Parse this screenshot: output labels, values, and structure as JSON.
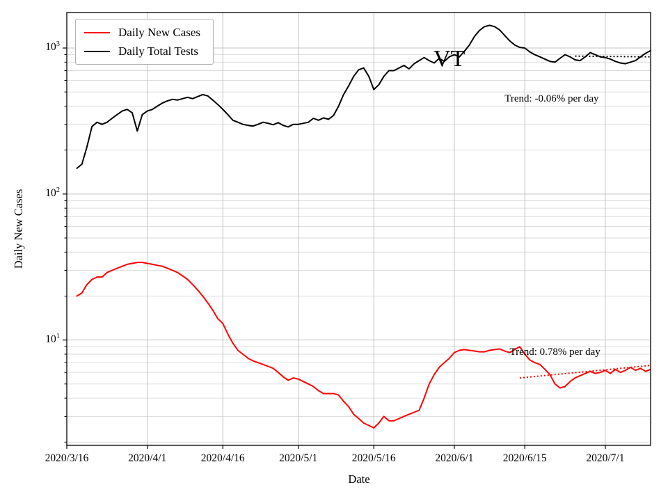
{
  "colors": {
    "accent_red": "#ff0000",
    "line_black": "#000000",
    "grid_major": "#c4c4c4",
    "grid_minor": "#d9d9d9",
    "axis": "#000000",
    "background": "#ffffff",
    "legend_border": "#b3b3b3"
  },
  "chart_data": {
    "type": "line",
    "title": "VT",
    "xlabel": "Date",
    "ylabel": "Daily New Cases",
    "y_scale": "log",
    "ylim": [
      1.9,
      1750
    ],
    "x_range": [
      "2020-03-16",
      "2020-07-10"
    ],
    "grid": true,
    "legend_position": "upper left",
    "y_ticks": [
      10,
      100,
      1000
    ],
    "y_minor_gridlines": [
      2,
      3,
      4,
      5,
      6,
      7,
      8,
      9,
      20,
      30,
      40,
      50,
      60,
      70,
      80,
      90,
      200,
      300,
      400,
      500,
      600,
      700,
      800,
      900
    ],
    "x_ticks": [
      {
        "date": "2020-03-16",
        "label": "2020/3/16"
      },
      {
        "date": "2020-04-01",
        "label": "2020/4/1"
      },
      {
        "date": "2020-04-16",
        "label": "2020/4/16"
      },
      {
        "date": "2020-05-01",
        "label": "2020/5/1"
      },
      {
        "date": "2020-05-16",
        "label": "2020/5/16"
      },
      {
        "date": "2020-06-01",
        "label": "2020/6/1"
      },
      {
        "date": "2020-06-15",
        "label": "2020/6/15"
      },
      {
        "date": "2020-07-01",
        "label": "2020/7/1"
      }
    ],
    "x": [
      "2020-03-18",
      "2020-03-19",
      "2020-03-20",
      "2020-03-21",
      "2020-03-22",
      "2020-03-23",
      "2020-03-24",
      "2020-03-25",
      "2020-03-26",
      "2020-03-27",
      "2020-03-28",
      "2020-03-29",
      "2020-03-30",
      "2020-03-31",
      "2020-04-01",
      "2020-04-02",
      "2020-04-03",
      "2020-04-04",
      "2020-04-05",
      "2020-04-06",
      "2020-04-07",
      "2020-04-08",
      "2020-04-09",
      "2020-04-10",
      "2020-04-11",
      "2020-04-12",
      "2020-04-13",
      "2020-04-14",
      "2020-04-15",
      "2020-04-16",
      "2020-04-17",
      "2020-04-18",
      "2020-04-19",
      "2020-04-20",
      "2020-04-21",
      "2020-04-22",
      "2020-04-23",
      "2020-04-24",
      "2020-04-25",
      "2020-04-26",
      "2020-04-27",
      "2020-04-28",
      "2020-04-29",
      "2020-04-30",
      "2020-05-01",
      "2020-05-02",
      "2020-05-03",
      "2020-05-04",
      "2020-05-05",
      "2020-05-06",
      "2020-05-07",
      "2020-05-08",
      "2020-05-09",
      "2020-05-10",
      "2020-05-11",
      "2020-05-12",
      "2020-05-13",
      "2020-05-14",
      "2020-05-15",
      "2020-05-16",
      "2020-05-17",
      "2020-05-18",
      "2020-05-19",
      "2020-05-20",
      "2020-05-21",
      "2020-05-22",
      "2020-05-23",
      "2020-05-24",
      "2020-05-25",
      "2020-05-26",
      "2020-05-27",
      "2020-05-28",
      "2020-05-29",
      "2020-05-30",
      "2020-05-31",
      "2020-06-01",
      "2020-06-02",
      "2020-06-03",
      "2020-06-04",
      "2020-06-05",
      "2020-06-06",
      "2020-06-07",
      "2020-06-08",
      "2020-06-09",
      "2020-06-10",
      "2020-06-11",
      "2020-06-12",
      "2020-06-13",
      "2020-06-14",
      "2020-06-15",
      "2020-06-16",
      "2020-06-17",
      "2020-06-18",
      "2020-06-19",
      "2020-06-20",
      "2020-06-21",
      "2020-06-22",
      "2020-06-23",
      "2020-06-24",
      "2020-06-25",
      "2020-06-26",
      "2020-06-27",
      "2020-06-28",
      "2020-06-29",
      "2020-06-30",
      "2020-07-01",
      "2020-07-02",
      "2020-07-03",
      "2020-07-04",
      "2020-07-05",
      "2020-07-06",
      "2020-07-07",
      "2020-07-08",
      "2020-07-09",
      "2020-07-10"
    ],
    "series": [
      {
        "name": "Daily New Cases",
        "color": "#ff0000",
        "values": [
          20,
          21,
          24,
          26,
          27,
          27,
          29,
          30,
          31,
          32,
          33,
          33.5,
          34,
          34,
          33.5,
          33,
          32.5,
          32,
          31,
          30,
          29,
          27.5,
          26,
          24,
          22,
          20,
          18,
          16,
          14,
          13,
          11,
          9.5,
          8.5,
          8,
          7.5,
          7.2,
          7,
          6.8,
          6.6,
          6.4,
          6,
          5.6,
          5.3,
          5.5,
          5.4,
          5.2,
          5,
          4.8,
          4.5,
          4.3,
          4.3,
          4.3,
          4.2,
          3.8,
          3.5,
          3.1,
          2.9,
          2.7,
          2.6,
          2.5,
          2.7,
          3,
          2.8,
          2.8,
          2.9,
          3,
          3.1,
          3.2,
          3.3,
          4,
          5,
          5.8,
          6.5,
          7,
          7.5,
          8.2,
          8.5,
          8.6,
          8.5,
          8.4,
          8.3,
          8.3,
          8.5,
          8.6,
          8.7,
          8.4,
          8.2,
          8.6,
          9,
          8,
          7.3,
          7,
          6.8,
          6.3,
          5.8,
          5,
          4.7,
          4.8,
          5.2,
          5.5,
          5.7,
          5.9,
          6.1,
          5.9,
          6,
          6.2,
          5.9,
          6.3,
          6,
          6.2,
          6.5,
          6.2,
          6.4,
          6.1,
          6.3
        ]
      },
      {
        "name": "Daily Total Tests",
        "color": "#000000",
        "values": [
          150,
          160,
          210,
          290,
          310,
          300,
          310,
          330,
          350,
          370,
          380,
          360,
          270,
          350,
          370,
          380,
          400,
          420,
          435,
          445,
          440,
          450,
          460,
          450,
          465,
          480,
          470,
          440,
          410,
          380,
          350,
          320,
          310,
          300,
          295,
          292,
          300,
          310,
          305,
          298,
          308,
          295,
          288,
          300,
          300,
          305,
          310,
          330,
          320,
          332,
          325,
          345,
          400,
          480,
          550,
          640,
          710,
          730,
          640,
          520,
          560,
          640,
          700,
          700,
          730,
          760,
          720,
          780,
          820,
          860,
          820,
          790,
          850,
          810,
          870,
          900,
          870,
          950,
          1050,
          1200,
          1320,
          1400,
          1430,
          1400,
          1330,
          1220,
          1120,
          1050,
          1010,
          1000,
          940,
          900,
          870,
          840,
          810,
          800,
          850,
          900,
          870,
          830,
          820,
          870,
          930,
          900,
          870,
          860,
          840,
          810,
          790,
          780,
          800,
          820,
          870,
          920,
          960
        ]
      }
    ],
    "trend_lines": [
      {
        "series": "Daily Total Tests",
        "label": "Trend: -0.06% per day",
        "color": "#000000",
        "style": "dotted",
        "x_start": "2020-06-25",
        "x_end": "2020-07-10",
        "y_start": 880,
        "y_end": 870
      },
      {
        "series": "Daily New Cases",
        "label": "Trend: 0.78% per day",
        "color": "#ff0000",
        "style": "dotted",
        "x_start": "2020-06-14",
        "x_end": "2020-07-10",
        "y_start": 5.5,
        "y_end": 6.7
      }
    ],
    "annotations": [
      {
        "name": "state-label",
        "text": "VT",
        "x": "2020-05-31",
        "y": 800,
        "font_size": 34,
        "align": "center",
        "color": "#000000"
      },
      {
        "name": "tests-trend-label",
        "text": "Trend: -0.06% per day",
        "x": "2020-06-11",
        "y": 440,
        "font_size": 15,
        "align": "left",
        "color": "#000000"
      },
      {
        "name": "cases-trend-label",
        "text": "Trend: 0.78% per day",
        "x": "2020-06-12",
        "y": 8.1,
        "font_size": 15,
        "align": "left",
        "color": "#000000"
      }
    ]
  }
}
